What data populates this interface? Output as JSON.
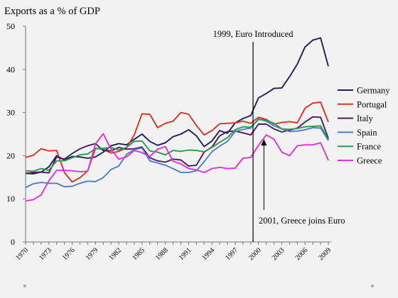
{
  "chart_data": {
    "type": "line",
    "title": "Exports as a % of GDP",
    "ylim": [
      0,
      50
    ],
    "yticks": [
      0,
      10,
      20,
      30,
      40,
      50
    ],
    "xlim": [
      1970,
      2009
    ],
    "xticks": [
      1970,
      1973,
      1976,
      1979,
      1982,
      1985,
      1988,
      1991,
      1994,
      1997,
      2000,
      2003,
      2006,
      2009
    ],
    "x": [
      1970,
      1971,
      1972,
      1973,
      1974,
      1975,
      1976,
      1977,
      1978,
      1979,
      1980,
      1981,
      1982,
      1983,
      1984,
      1985,
      1986,
      1987,
      1988,
      1989,
      1990,
      1991,
      1992,
      1993,
      1994,
      1995,
      1996,
      1997,
      1998,
      1999,
      2000,
      2001,
      2002,
      2003,
      2004,
      2005,
      2006,
      2007,
      2008,
      2009
    ],
    "grid": false,
    "legend_position": "right",
    "series": [
      {
        "name": "Germany",
        "color": "#1f1f5a",
        "values": [
          15.9,
          15.8,
          16.2,
          17.4,
          20.0,
          19.0,
          19.8,
          19.7,
          19.4,
          19.7,
          20.8,
          22.3,
          22.8,
          22.5,
          23.8,
          25.0,
          23.3,
          22.4,
          23.0,
          24.4,
          25.0,
          26.0,
          24.6,
          22.1,
          23.4,
          25.8,
          25.2,
          27.6,
          28.6,
          29.3,
          33.4,
          34.4,
          35.6,
          35.7,
          38.3,
          41.2,
          45.2,
          46.8,
          47.3,
          40.7
        ]
      },
      {
        "name": "Portugal",
        "color": "#e03028",
        "values": [
          19.6,
          20.1,
          21.6,
          21.1,
          21.2,
          16.1,
          13.9,
          14.9,
          16.5,
          21.7,
          21.5,
          20.6,
          21.0,
          21.8,
          24.8,
          29.7,
          29.6,
          26.5,
          27.5,
          28.0,
          30.0,
          29.6,
          27.0,
          24.8,
          25.8,
          27.4,
          27.5,
          27.6,
          28.0,
          27.5,
          28.9,
          28.4,
          27.3,
          27.7,
          27.9,
          27.6,
          31.0,
          32.2,
          32.4,
          27.8
        ]
      },
      {
        "name": "Italy",
        "color": "#4e1a63",
        "values": [
          15.9,
          16.1,
          16.2,
          16.0,
          19.7,
          19.2,
          20.5,
          21.6,
          22.3,
          22.8,
          21.2,
          21.1,
          21.9,
          21.5,
          21.6,
          22.0,
          19.5,
          18.8,
          18.5,
          19.2,
          19.0,
          17.6,
          17.8,
          20.8,
          22.0,
          24.6,
          25.6,
          25.7,
          25.3,
          24.8,
          27.3,
          27.3,
          26.2,
          25.5,
          25.9,
          26.4,
          27.8,
          29.0,
          28.9,
          24.0
        ]
      },
      {
        "name": "Spain",
        "color": "#4e7fc4",
        "values": [
          12.6,
          13.5,
          13.8,
          13.6,
          13.6,
          12.8,
          12.9,
          13.6,
          14.1,
          14.0,
          14.9,
          16.8,
          17.6,
          20.3,
          21.4,
          21.8,
          18.8,
          18.3,
          17.8,
          17.0,
          16.1,
          16.1,
          16.5,
          18.6,
          20.9,
          22.2,
          23.3,
          25.6,
          26.1,
          26.4,
          28.5,
          28.0,
          26.9,
          26.2,
          25.6,
          25.7,
          26.0,
          26.5,
          26.4,
          23.5
        ]
      },
      {
        "name": "France",
        "color": "#2a9a4e",
        "values": [
          16.5,
          16.4,
          17.0,
          16.6,
          18.8,
          18.8,
          19.5,
          20.2,
          20.4,
          21.6,
          21.7,
          21.9,
          21.3,
          21.9,
          23.3,
          23.4,
          21.1,
          20.8,
          20.2,
          21.2,
          21.0,
          21.3,
          21.2,
          20.9,
          21.9,
          23.1,
          24.2,
          26.0,
          26.7,
          26.6,
          28.4,
          28.2,
          27.5,
          26.2,
          26.1,
          26.3,
          26.7,
          26.8,
          26.9,
          23.7
        ]
      },
      {
        "name": "Greece",
        "color": "#df32df",
        "values": [
          9.5,
          9.8,
          10.9,
          14.2,
          16.6,
          16.6,
          16.5,
          16.3,
          16.4,
          22.7,
          25.1,
          21.5,
          19.2,
          19.7,
          21.2,
          20.7,
          19.8,
          21.5,
          22.1,
          18.7,
          18.1,
          17.0,
          16.7,
          16.1,
          17.0,
          17.3,
          17.0,
          17.1,
          19.4,
          19.6,
          22.4,
          24.8,
          23.8,
          20.8,
          20.0,
          22.3,
          22.5,
          22.5,
          23.0,
          18.9
        ]
      }
    ],
    "annotations": [
      {
        "text": "1999,  Euro Introduced",
        "x": 1999.3,
        "type": "vertical-line"
      },
      {
        "text": "2001, Greece joins Euro",
        "x": 2000.7,
        "y": 24.0,
        "type": "arrow"
      }
    ]
  }
}
